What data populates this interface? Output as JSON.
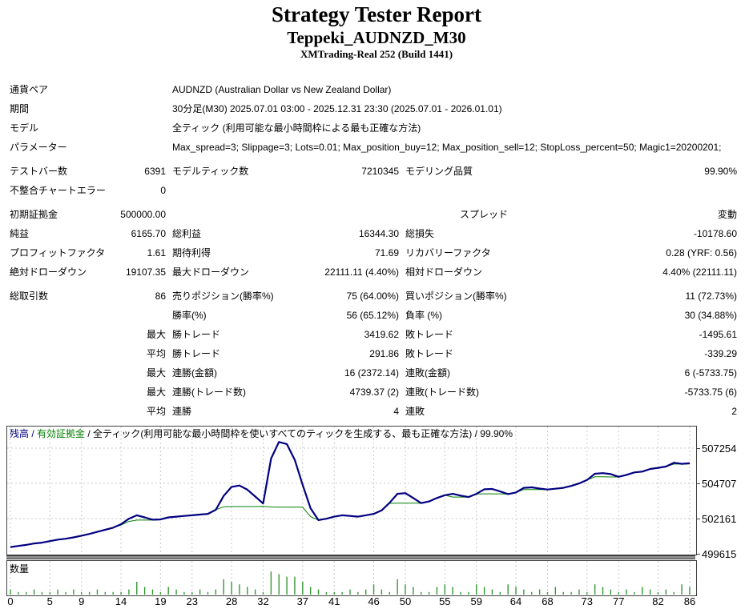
{
  "report": {
    "title": "Strategy Tester Report",
    "ea_name": "Teppeki_AUDNZD_M30",
    "server": "XMTrading-Real 252 (Build 1441)"
  },
  "info_rows": [
    {
      "label": "通貨ペア",
      "value": "AUDNZD (Australian Dollar vs New Zealand Dollar)"
    },
    {
      "label": "期間",
      "value": "30分足(M30) 2025.07.01 03:00 - 2025.12.31 23:30 (2025.07.01 - 2026.01.01)"
    },
    {
      "label": "モデル",
      "value": "全ティック (利用可能な最小時間枠による最も正確な方法)"
    },
    {
      "label": "パラメーター",
      "value": "Max_spread=3; Slippage=3; Lots=0.01; Max_position_buy=12; Max_position_sell=12; StopLoss_percent=50; Magic1=20200201;"
    }
  ],
  "stat_rows": [
    {
      "c1l": "テストバー数",
      "c1v": "6391",
      "c2l": "モデルティック数",
      "c2v": "7210345",
      "c3l": "モデリング品質",
      "c3v": "99.90%"
    },
    {
      "c1l": "不整合チャートエラー",
      "c1v": "0"
    },
    {
      "gap": true
    },
    {
      "c1l": "初期証拠金",
      "c1v": "500000.00",
      "c3l": "スプレッド",
      "c3v": "変動",
      "indent3": true
    },
    {
      "c1l": "純益",
      "c1v": "6165.70",
      "c2l": "総利益",
      "c2v": "16344.30",
      "c3l": "総損失",
      "c3v": "-10178.60"
    },
    {
      "c1l": "プロフィットファクタ",
      "c1v": "1.61",
      "c2l": "期待利得",
      "c2v": "71.69",
      "c3l": "リカバリーファクタ",
      "c3v": "0.28 (YRF: 0.56)"
    },
    {
      "c1l": "絶対ドローダウン",
      "c1v": "19107.35",
      "c2l": "最大ドローダウン",
      "c2v": "22111.11 (4.40%)",
      "c3l": "相対ドローダウン",
      "c3v": "4.40% (22111.11)"
    },
    {
      "gap": true
    },
    {
      "c1l": "総取引数",
      "c1v": "86",
      "c2l": "売りポジション(勝率%)",
      "c2v": "75 (64.00%)",
      "c3l": "買いポジション(勝率%)",
      "c3v": "11 (72.73%)"
    },
    {
      "c2l": "勝率(%)",
      "c2v": "56 (65.12%)",
      "c3l": "負率 (%)",
      "c3v": "30 (34.88%)"
    },
    {
      "c1v": "最大",
      "c2l": "勝トレード",
      "c2v": "3419.62",
      "c3l": "敗トレード",
      "c3v": "-1495.61"
    },
    {
      "c1v": "平均",
      "c2l": "勝トレード",
      "c2v": "291.86",
      "c3l": "敗トレード",
      "c3v": "-339.29"
    },
    {
      "c1v": "最大",
      "c2l": "連勝(金額)",
      "c2v": "16 (2372.14)",
      "c3l": "連敗(金額)",
      "c3v": "6 (-5733.75)"
    },
    {
      "c1v": "最大",
      "c2l": "連勝(トレード数)",
      "c2v": "4739.37 (2)",
      "c3l": "連敗(トレード数)",
      "c3v": "-5733.75 (6)"
    },
    {
      "c1v": "平均",
      "c2l": "連勝",
      "c2v": "4",
      "c3l": "連敗",
      "c3v": "2"
    }
  ],
  "chart_data": {
    "type": "line",
    "legend": {
      "balance_label": "残高",
      "separator": " / ",
      "equity_label": "有効証拠金",
      "model_text": " / 全ティック(利用可能な最小時間枠を使いすべてのティックを生成する、最も正確な方法) / 99.90%"
    },
    "volume_label": "数量",
    "x_ticks": [
      0,
      5,
      9,
      14,
      19,
      23,
      28,
      32,
      37,
      41,
      46,
      50,
      55,
      59,
      64,
      68,
      73,
      77,
      82,
      86
    ],
    "y_ticks": [
      507254,
      504707,
      502161,
      499615
    ],
    "xlim": [
      0,
      86
    ],
    "ylim": [
      499615,
      508815
    ],
    "series": [
      {
        "name": "balance",
        "color": "#000080",
        "values": [
          500100,
          500180,
          500260,
          500360,
          500420,
          500530,
          500640,
          500700,
          500800,
          500920,
          501050,
          501200,
          501350,
          501500,
          501750,
          502150,
          502400,
          502250,
          502080,
          502100,
          502250,
          502300,
          502350,
          502400,
          502450,
          502500,
          502800,
          503800,
          504450,
          504550,
          504250,
          503750,
          503250,
          506500,
          507700,
          507550,
          506400,
          504600,
          502900,
          502050,
          502150,
          502300,
          502400,
          502350,
          502300,
          502400,
          502500,
          502750,
          503300,
          503950,
          504000,
          503650,
          503280,
          503400,
          503650,
          503850,
          503950,
          503820,
          503720,
          503950,
          504280,
          504300,
          504120,
          503930,
          504050,
          504380,
          504420,
          504330,
          504260,
          504320,
          504380,
          504520,
          504700,
          504950,
          505400,
          505450,
          505380,
          505180,
          505320,
          505500,
          505560,
          505750,
          505830,
          505920,
          506200,
          506120,
          506160
        ]
      },
      {
        "name": "equity",
        "color": "#008000",
        "values": [
          500100,
          500180,
          500260,
          500360,
          500420,
          500530,
          500640,
          500700,
          500800,
          500920,
          501050,
          501200,
          501350,
          501500,
          501700,
          501950,
          502050,
          502050,
          502050,
          502080,
          502250,
          502300,
          502350,
          502400,
          502450,
          502500,
          502800,
          503020,
          503030,
          503030,
          503030,
          503030,
          503040,
          503000,
          502980,
          502980,
          502980,
          502980,
          502300,
          502050,
          502150,
          502300,
          502400,
          502350,
          502300,
          502400,
          502500,
          502750,
          503260,
          503270,
          503270,
          503270,
          503270,
          503400,
          503650,
          503850,
          503720,
          503720,
          503710,
          503940,
          503950,
          503950,
          503950,
          503930,
          504050,
          504260,
          504260,
          504260,
          504255,
          504320,
          504380,
          504520,
          504700,
          504950,
          505180,
          505180,
          505170,
          505170,
          505320,
          505500,
          505560,
          505750,
          505830,
          505920,
          506100,
          506100,
          506110
        ]
      }
    ],
    "volume": {
      "color": "#339933",
      "values": [
        2,
        1,
        1,
        2,
        1,
        1,
        2,
        1,
        2,
        1,
        1,
        2,
        1,
        1,
        1,
        2,
        5,
        3,
        2,
        1,
        3,
        2,
        1,
        1,
        2,
        1,
        2,
        6,
        5,
        4,
        3,
        2,
        1,
        9,
        8,
        7,
        7,
        5,
        3,
        2,
        1,
        1,
        1,
        2,
        1,
        2,
        4,
        2,
        1,
        6,
        4,
        3,
        1,
        1,
        3,
        4,
        3,
        1,
        1,
        4,
        3,
        2,
        1,
        4,
        3,
        2,
        1,
        2,
        1,
        3,
        1,
        1,
        2,
        1,
        4,
        3,
        2,
        1,
        2,
        1,
        3,
        2,
        1,
        2,
        1,
        4,
        3
      ]
    }
  },
  "colors": {
    "grid": "#c8c8c8",
    "border": "#404040",
    "separator": "#909090",
    "balance": "#000080",
    "equity": "#008000",
    "volume": "#339933"
  }
}
